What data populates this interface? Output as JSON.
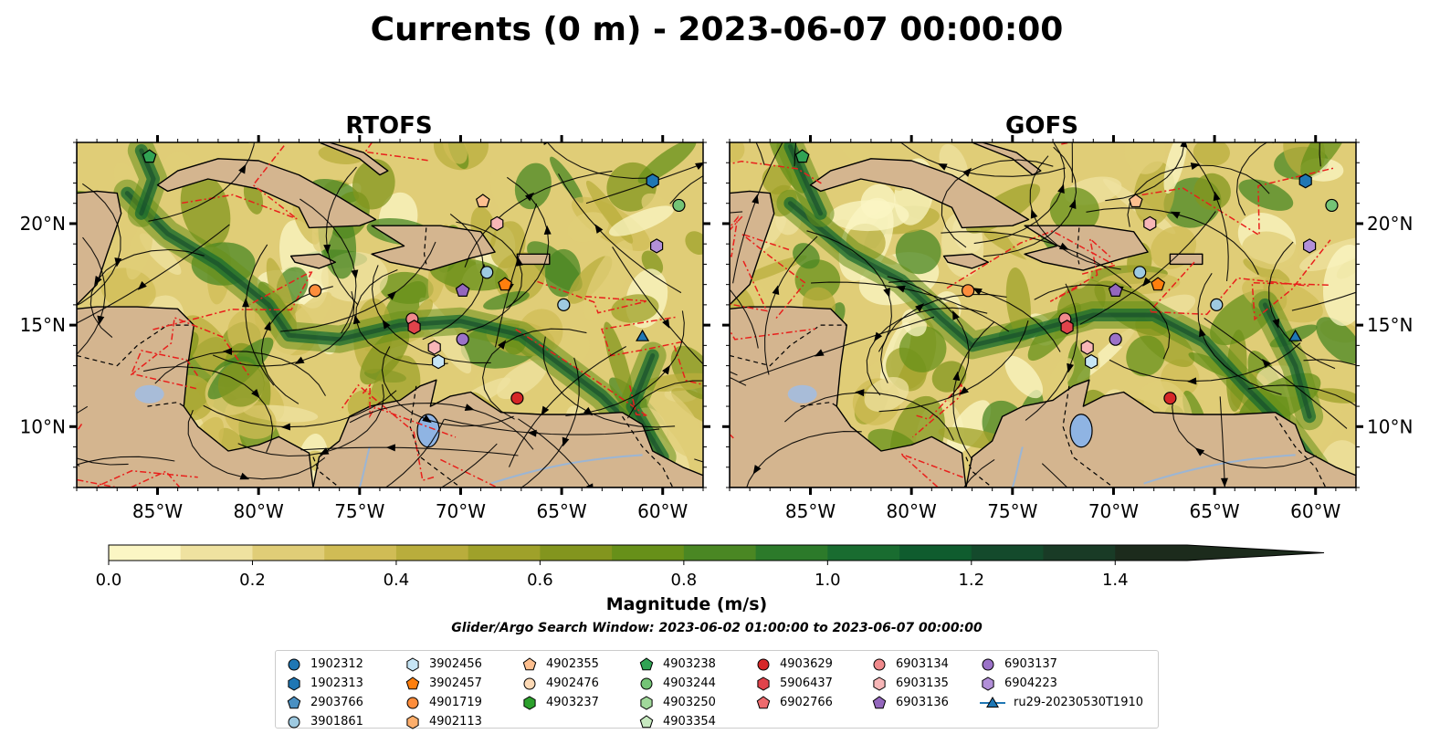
{
  "figure": {
    "title": "Currents (0 m) - 2023-06-07 00:00:00",
    "panels": [
      {
        "title": "RTOFS"
      },
      {
        "title": "GOFS"
      }
    ],
    "colorbar": {
      "label": "Magnitude (m/s)",
      "ticks": [
        "0.0",
        "0.2",
        "0.4",
        "0.6",
        "0.8",
        "1.0",
        "1.2",
        "1.4"
      ],
      "levels": [
        "#fbf6c4",
        "#efe2a0",
        "#e0cd77",
        "#d0bc55",
        "#b9ad3c",
        "#9fa12a",
        "#83951e",
        "#679019",
        "#4a8723",
        "#2c7a2a",
        "#196c30",
        "#0f5c2e",
        "#144a2c",
        "#193b26",
        "#1c2b1c"
      ]
    },
    "search_window": "Glider/Argo Search Window: 2023-06-02 01:00:00 to 2023-06-07 00:00:00",
    "colors": {
      "land": "#d4b58f",
      "lake": "#8fb4e3",
      "red_dash": "#e8201c"
    }
  },
  "chart_data": [
    {
      "type": "heatmap",
      "title": "RTOFS",
      "variable": "ocean current speed with streamlines",
      "xlim": [
        -89.0,
        -58.0
      ],
      "ylim": [
        7.0,
        24.0
      ],
      "xticks": [
        "85°W",
        "80°W",
        "75°W",
        "70°W",
        "65°W",
        "60°W"
      ],
      "yticks": [
        "10°N",
        "15°N",
        "20°N"
      ],
      "vmin": 0.0,
      "vmax": 1.5,
      "markers": [
        {
          "id": "1902313",
          "lon": -60.5,
          "lat": 22.1
        },
        {
          "id": "4903244",
          "lon": -59.2,
          "lat": 20.9
        },
        {
          "id": "6904223",
          "lon": -60.3,
          "lat": 18.9
        },
        {
          "id": "4902355",
          "lon": -68.9,
          "lat": 21.1
        },
        {
          "id": "6903135",
          "lon": -68.2,
          "lat": 20.0
        },
        {
          "id": "3901861",
          "lon": -68.7,
          "lat": 17.6
        },
        {
          "id": "3902457",
          "lon": -67.8,
          "lat": 17.0
        },
        {
          "id": "6903136",
          "lon": -69.9,
          "lat": 16.7
        },
        {
          "id": "4901719",
          "lon": -77.2,
          "lat": 16.7
        },
        {
          "id": "6903134",
          "lon": -72.4,
          "lat": 15.3
        },
        {
          "id": "5906437",
          "lon": -72.3,
          "lat": 14.9
        },
        {
          "id": "6903137",
          "lon": -69.9,
          "lat": 14.3
        },
        {
          "id": "6903135",
          "lon": -71.3,
          "lat": 13.9
        },
        {
          "id": "3902456",
          "lon": -71.1,
          "lat": 13.2
        },
        {
          "id": "3901861",
          "lon": -64.9,
          "lat": 16.0
        },
        {
          "id": "4903629",
          "lon": -67.2,
          "lat": 11.4
        },
        {
          "id": "ru29-20230530T1910",
          "lon": -61.0,
          "lat": 14.4
        },
        {
          "id": "4903238",
          "lon": -85.4,
          "lat": 23.3
        }
      ]
    },
    {
      "type": "heatmap",
      "title": "GOFS",
      "variable": "ocean current speed with streamlines",
      "xlim": [
        -89.0,
        -58.0
      ],
      "ylim": [
        7.0,
        24.0
      ],
      "xticks": [
        "85°W",
        "80°W",
        "75°W",
        "70°W",
        "65°W",
        "60°W"
      ],
      "yticks": [
        "10°N",
        "15°N",
        "20°N"
      ],
      "vmin": 0.0,
      "vmax": 1.5,
      "markers": [
        {
          "id": "1902313",
          "lon": -60.5,
          "lat": 22.1
        },
        {
          "id": "4903244",
          "lon": -59.2,
          "lat": 20.9
        },
        {
          "id": "6904223",
          "lon": -60.3,
          "lat": 18.9
        },
        {
          "id": "4902355",
          "lon": -68.9,
          "lat": 21.1
        },
        {
          "id": "6903135",
          "lon": -68.2,
          "lat": 20.0
        },
        {
          "id": "3901861",
          "lon": -68.7,
          "lat": 17.6
        },
        {
          "id": "3902457",
          "lon": -67.8,
          "lat": 17.0
        },
        {
          "id": "6903136",
          "lon": -69.9,
          "lat": 16.7
        },
        {
          "id": "4901719",
          "lon": -77.2,
          "lat": 16.7
        },
        {
          "id": "6903134",
          "lon": -72.4,
          "lat": 15.3
        },
        {
          "id": "5906437",
          "lon": -72.3,
          "lat": 14.9
        },
        {
          "id": "6903137",
          "lon": -69.9,
          "lat": 14.3
        },
        {
          "id": "6903135",
          "lon": -71.3,
          "lat": 13.9
        },
        {
          "id": "3902456",
          "lon": -71.1,
          "lat": 13.2
        },
        {
          "id": "3901861",
          "lon": -64.9,
          "lat": 16.0
        },
        {
          "id": "4903629",
          "lon": -67.2,
          "lat": 11.4
        },
        {
          "id": "ru29-20230530T1910",
          "lon": -61.0,
          "lat": 14.4
        },
        {
          "id": "4903238",
          "lon": -85.4,
          "lat": 23.3
        }
      ]
    }
  ],
  "legend": {
    "items": [
      {
        "label": "1902312",
        "shape": "circle",
        "color": "#1f77b4"
      },
      {
        "label": "1902313",
        "shape": "hexagon",
        "color": "#1f77b4"
      },
      {
        "label": "2903766",
        "shape": "pentagon",
        "color": "#4a90c2"
      },
      {
        "label": "3901861",
        "shape": "circle",
        "color": "#9ecae1"
      },
      {
        "label": "3902456",
        "shape": "hexagon",
        "color": "#c6e5f5"
      },
      {
        "label": "3902457",
        "shape": "pentagon",
        "color": "#ff7f0e"
      },
      {
        "label": "4901719",
        "shape": "circle",
        "color": "#fd8d3c"
      },
      {
        "label": "4902113",
        "shape": "hexagon",
        "color": "#fdae6b"
      },
      {
        "label": "4902355",
        "shape": "pentagon",
        "color": "#fdbf8f"
      },
      {
        "label": "4902476",
        "shape": "circle",
        "color": "#fdd9b5"
      },
      {
        "label": "4903237",
        "shape": "hexagon",
        "color": "#2ca02c"
      },
      {
        "label": "4903238",
        "shape": "pentagon",
        "color": "#31a354"
      },
      {
        "label": "4903244",
        "shape": "circle",
        "color": "#74c476"
      },
      {
        "label": "4903250",
        "shape": "hexagon",
        "color": "#a1d99b"
      },
      {
        "label": "4903354",
        "shape": "pentagon",
        "color": "#c7e9c0"
      },
      {
        "label": "4903629",
        "shape": "circle",
        "color": "#d62728"
      },
      {
        "label": "5906437",
        "shape": "hexagon",
        "color": "#e0434b"
      },
      {
        "label": "6902766",
        "shape": "pentagon",
        "color": "#ee6b6e"
      },
      {
        "label": "6903134",
        "shape": "circle",
        "color": "#f08a8c"
      },
      {
        "label": "6903135",
        "shape": "hexagon",
        "color": "#f7b6b7"
      },
      {
        "label": "6903136",
        "shape": "pentagon",
        "color": "#9467bd"
      },
      {
        "label": "6903137",
        "shape": "circle",
        "color": "#9b72c8"
      },
      {
        "label": "6904223",
        "shape": "hexagon",
        "color": "#b28fd8"
      },
      {
        "label": "ru29-20230530T1910",
        "shape": "triangle-line",
        "color": "#1f77b4"
      }
    ]
  }
}
